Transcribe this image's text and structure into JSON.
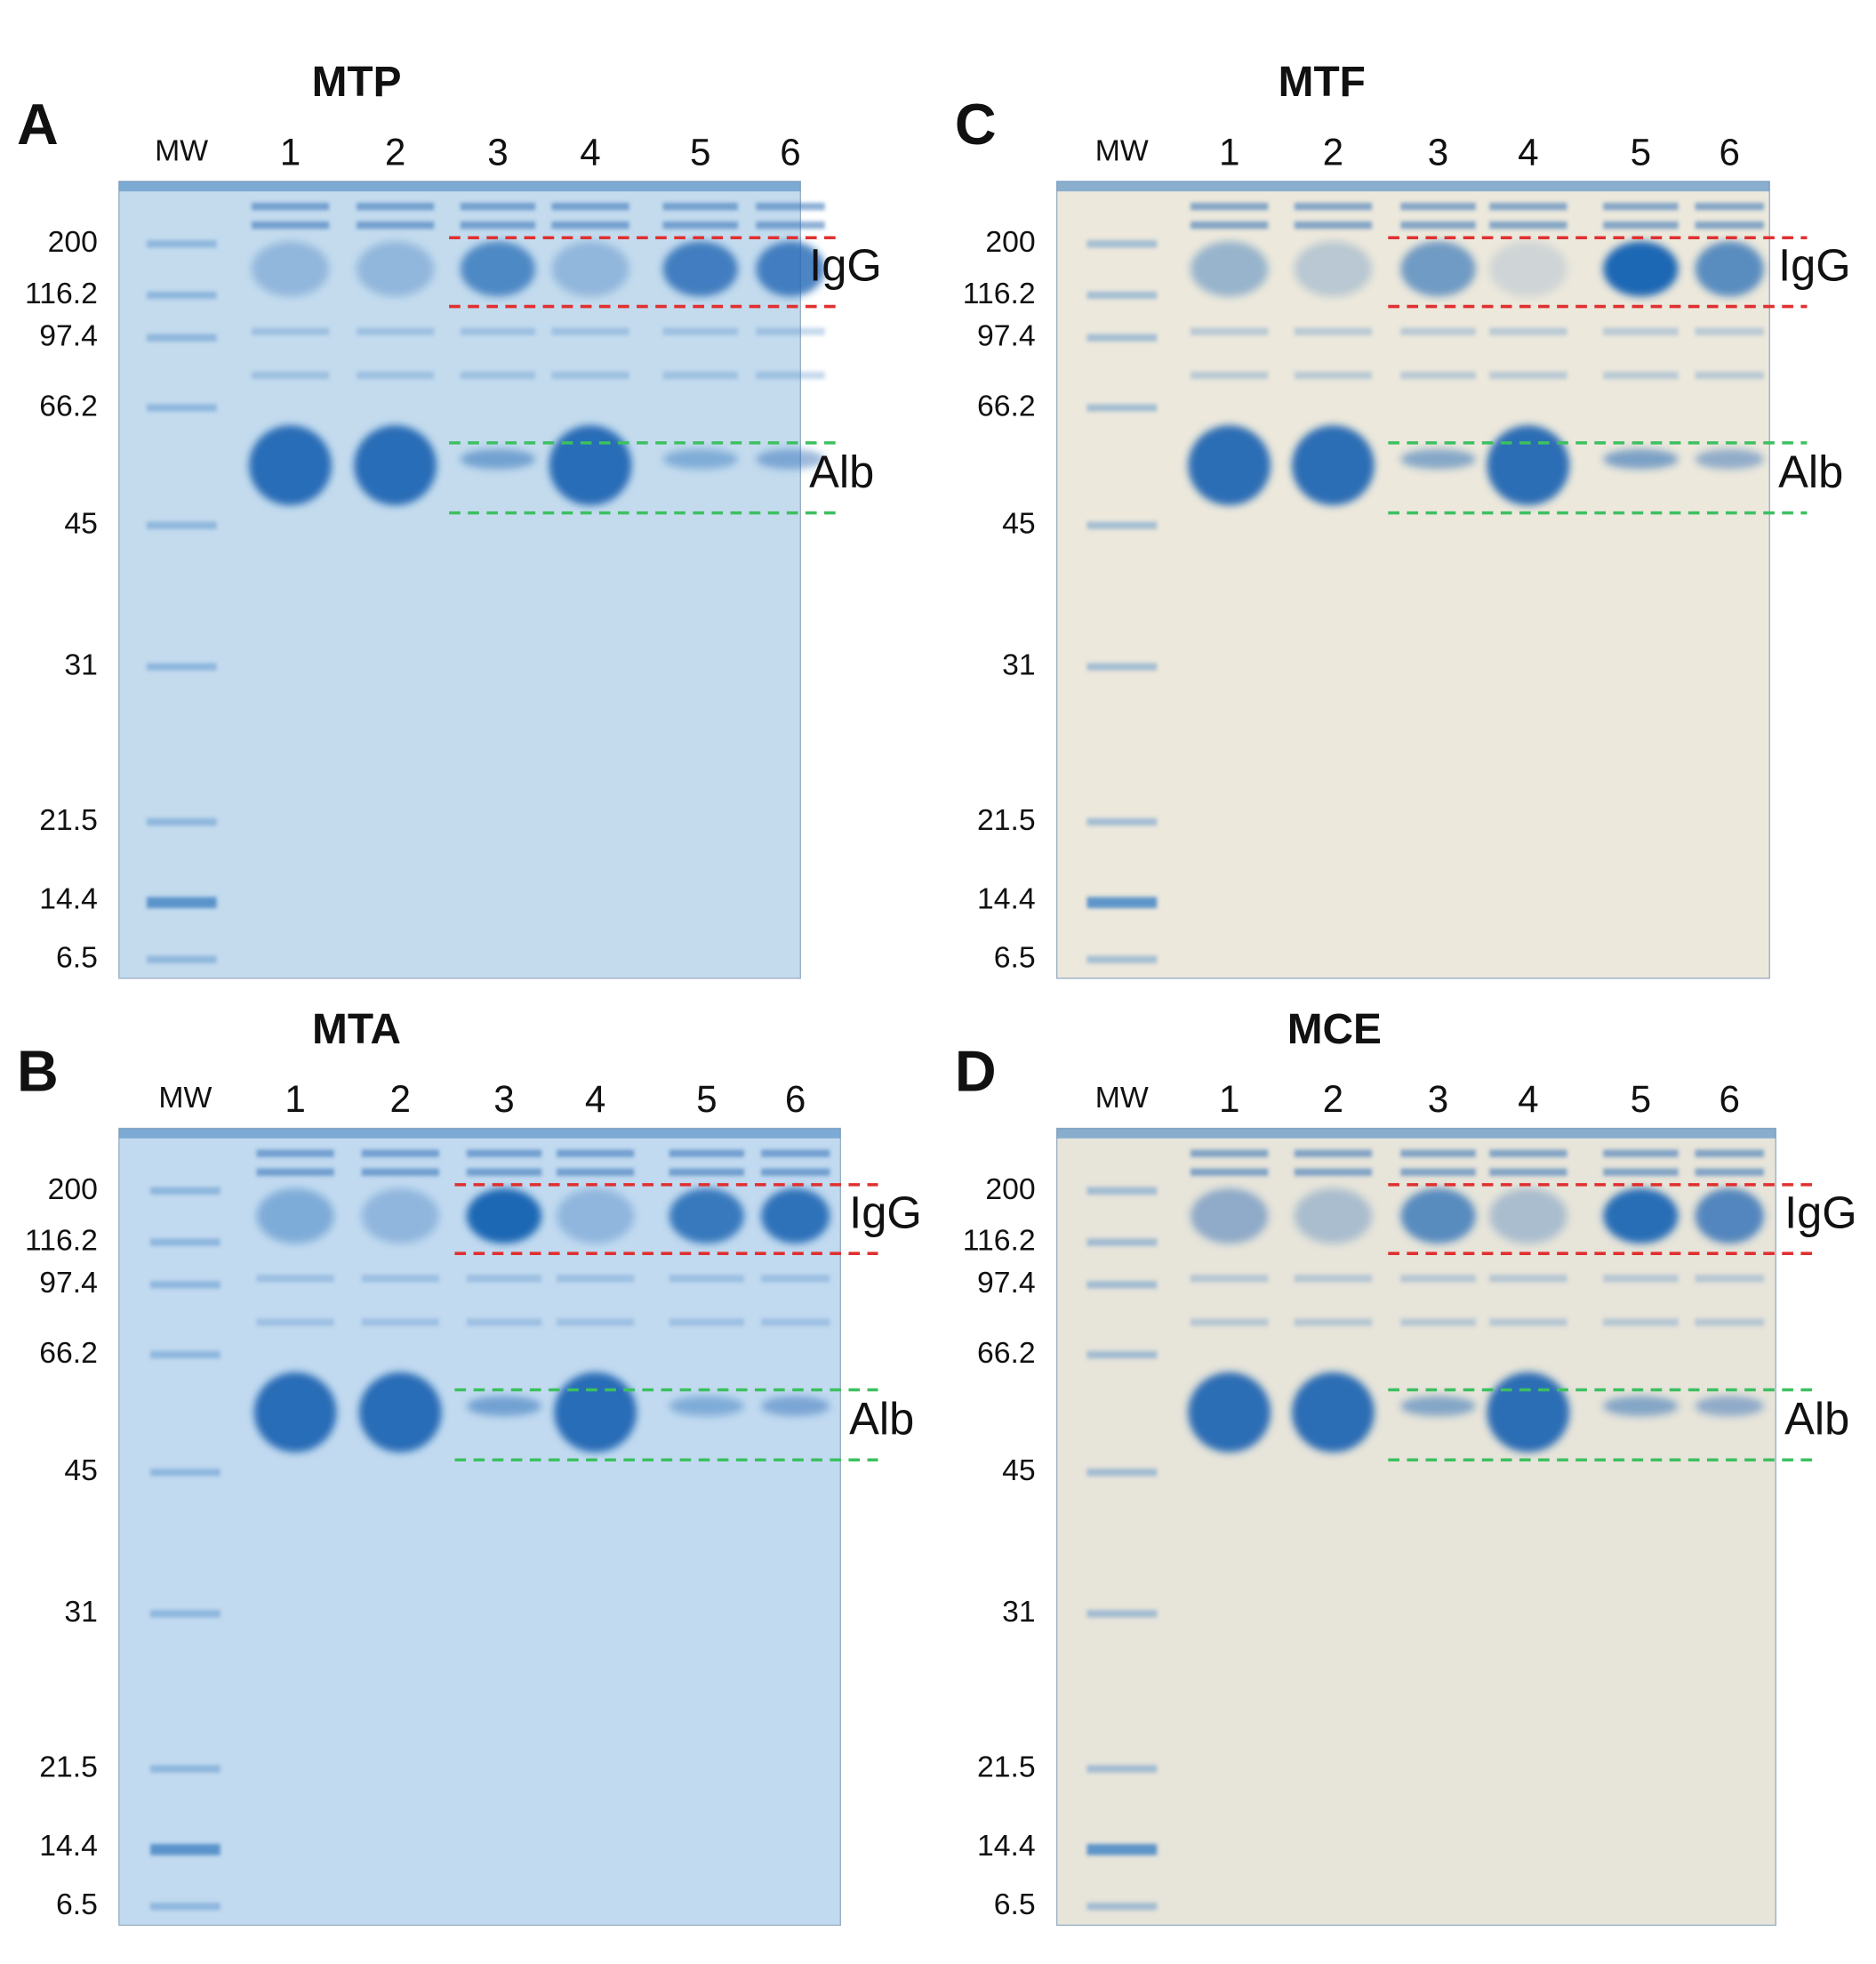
{
  "panels": [
    {
      "letter": "A",
      "title": "MTP",
      "lanes": [
        "MW",
        "1",
        "2",
        "3",
        "4",
        "5",
        "6"
      ],
      "markers": [
        "200",
        "116.2",
        "97.4",
        "66.2",
        "45",
        "31",
        "21.5",
        "14.4",
        "6.5"
      ],
      "igg_label": "IgG",
      "alb_label": "Alb"
    },
    {
      "letter": "B",
      "title": "MTA",
      "lanes": [
        "MW",
        "1",
        "2",
        "3",
        "4",
        "5",
        "6"
      ],
      "markers": [
        "200",
        "116.2",
        "97.4",
        "66.2",
        "45",
        "31",
        "21.5",
        "14.4",
        "6.5"
      ],
      "igg_label": "IgG",
      "alb_label": "Alb"
    },
    {
      "letter": "C",
      "title": "MTF",
      "lanes": [
        "MW",
        "1",
        "2",
        "3",
        "4",
        "5",
        "6"
      ],
      "markers": [
        "200",
        "116.2",
        "97.4",
        "66.2",
        "45",
        "31",
        "21.5",
        "14.4",
        "6.5"
      ],
      "igg_label": "IgG",
      "alb_label": "Alb"
    },
    {
      "letter": "D",
      "title": "MCE",
      "lanes": [
        "MW",
        "1",
        "2",
        "3",
        "4",
        "5",
        "6"
      ],
      "markers": [
        "200",
        "116.2",
        "97.4",
        "66.2",
        "45",
        "31",
        "21.5",
        "14.4",
        "6.5"
      ],
      "igg_label": "IgG",
      "alb_label": "Alb"
    }
  ]
}
